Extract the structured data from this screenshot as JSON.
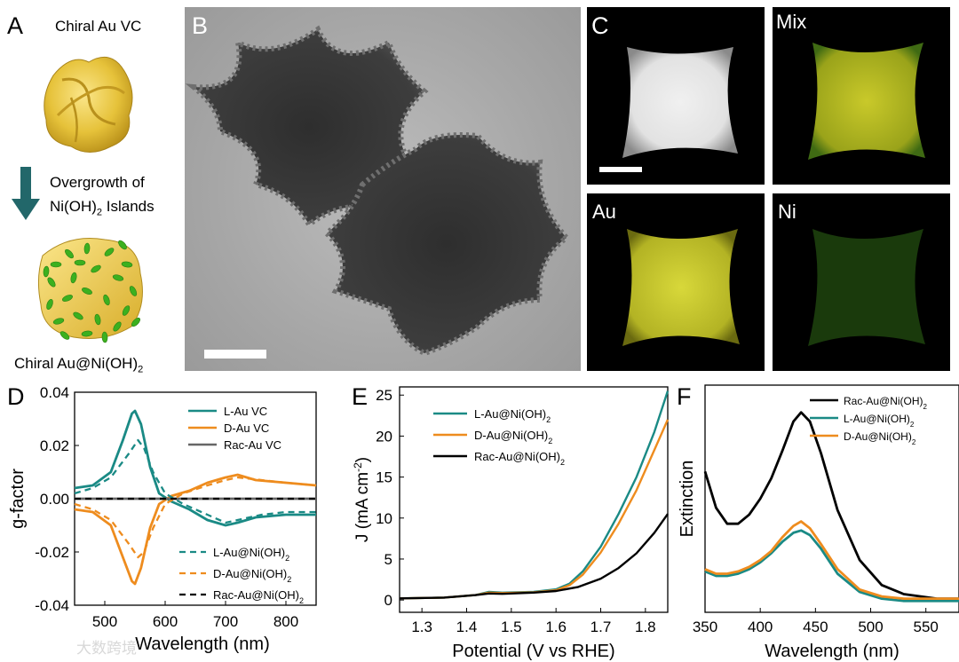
{
  "panel_labels": {
    "a": "A",
    "b": "B",
    "c": "C",
    "d": "D",
    "e": "E",
    "f": "F"
  },
  "panel_a": {
    "top_title": "Chiral Au VC",
    "arrow_text_1": "Overgrowth of",
    "arrow_text_2": "Ni(OH)",
    "arrow_text_2_sub": "2",
    "arrow_text_2_tail": " Islands",
    "bottom_title": "Chiral Au@Ni(OH)",
    "bottom_title_sub": "2",
    "colors": {
      "gold": "#e9c63a",
      "green": "#3cb01f",
      "arrow": "#22676a"
    }
  },
  "panel_c": {
    "map_labels": [
      "Mix",
      "Au",
      "Ni"
    ]
  },
  "colors": {
    "teal": "#1a8a85",
    "orange": "#ee8c1e",
    "black": "#000000",
    "gray": "#666666"
  },
  "watermark": "大数跨境",
  "chart_data": [
    {
      "id": "D",
      "type": "line",
      "xlabel": "Wavelength (nm)",
      "ylabel": "g-factor",
      "xlim": [
        450,
        850
      ],
      "ylim": [
        -0.04,
        0.04
      ],
      "xticks": [
        500,
        600,
        700,
        800
      ],
      "yticks": [
        0.04,
        0.02,
        0.0,
        -0.02,
        -0.04
      ],
      "ytick_labels": [
        "0.04",
        "0.02",
        "0.00",
        "-0.02",
        "-0.04"
      ],
      "legend_solid": [
        "L-Au VC",
        "D-Au VC",
        "Rac-Au VC"
      ],
      "legend_dashed": [
        "L-Au@Ni(OH)",
        "D-Au@Ni(OH)",
        "Rac-Au@Ni(OH)"
      ],
      "legend_sub": "2",
      "series": [
        {
          "name": "L-Au VC",
          "style": "solid",
          "color": "teal",
          "x": [
            450,
            480,
            510,
            530,
            545,
            550,
            560,
            575,
            590,
            610,
            640,
            670,
            700,
            720,
            750,
            800,
            850
          ],
          "y": [
            0.004,
            0.005,
            0.01,
            0.022,
            0.032,
            0.033,
            0.028,
            0.012,
            0.002,
            -0.001,
            -0.004,
            -0.008,
            -0.01,
            -0.009,
            -0.007,
            -0.006,
            -0.006
          ]
        },
        {
          "name": "D-Au VC",
          "style": "solid",
          "color": "orange",
          "x": [
            450,
            480,
            510,
            530,
            545,
            550,
            560,
            575,
            590,
            610,
            640,
            670,
            700,
            720,
            750,
            800,
            850
          ],
          "y": [
            -0.004,
            -0.005,
            -0.01,
            -0.022,
            -0.031,
            -0.032,
            -0.026,
            -0.011,
            -0.002,
            0.001,
            0.003,
            0.006,
            0.008,
            0.009,
            0.007,
            0.006,
            0.005
          ]
        },
        {
          "name": "Rac-Au VC",
          "style": "solid",
          "color": "gray",
          "x": [
            450,
            850
          ],
          "y": [
            0.0,
            0.0
          ]
        },
        {
          "name": "L-Au@Ni(OH)2",
          "style": "dashed",
          "color": "teal",
          "x": [
            450,
            480,
            510,
            540,
            555,
            565,
            580,
            600,
            630,
            670,
            700,
            720,
            760,
            800,
            850
          ],
          "y": [
            0.002,
            0.004,
            0.008,
            0.017,
            0.022,
            0.019,
            0.01,
            0.002,
            -0.002,
            -0.006,
            -0.009,
            -0.008,
            -0.006,
            -0.005,
            -0.005
          ]
        },
        {
          "name": "D-Au@Ni(OH)2",
          "style": "dashed",
          "color": "orange",
          "x": [
            450,
            480,
            510,
            540,
            555,
            565,
            580,
            600,
            630,
            670,
            700,
            720,
            760,
            800,
            850
          ],
          "y": [
            -0.002,
            -0.004,
            -0.008,
            -0.017,
            -0.022,
            -0.02,
            -0.011,
            -0.002,
            0.002,
            0.005,
            0.007,
            0.008,
            0.007,
            0.006,
            0.005
          ]
        },
        {
          "name": "Rac-Au@Ni(OH)2",
          "style": "dashed",
          "color": "black",
          "x": [
            450,
            850
          ],
          "y": [
            0.0,
            0.0
          ]
        }
      ]
    },
    {
      "id": "E",
      "type": "line",
      "xlabel": "Potential (V vs RHE)",
      "ylabel": "J (mA cm",
      "ylabel_sup": "-2",
      "ylabel_tail": ")",
      "xlim": [
        1.25,
        1.85
      ],
      "ylim": [
        -1.5,
        26
      ],
      "xticks": [
        1.3,
        1.4,
        1.5,
        1.6,
        1.7,
        1.8
      ],
      "xtick_labels": [
        "1.3",
        "1.4",
        "1.5",
        "1.6",
        "1.7",
        "1.8"
      ],
      "yticks": [
        0,
        5,
        10,
        15,
        20,
        25
      ],
      "legend": [
        "L-Au@Ni(OH)",
        "D-Au@Ni(OH)",
        "Rac-Au@Ni(OH)"
      ],
      "legend_sub": "2",
      "series": [
        {
          "name": "L-Au@Ni(OH)2",
          "color": "teal",
          "x": [
            1.25,
            1.35,
            1.42,
            1.45,
            1.48,
            1.55,
            1.6,
            1.63,
            1.66,
            1.7,
            1.74,
            1.78,
            1.82,
            1.85
          ],
          "y": [
            0.2,
            0.3,
            0.6,
            1.0,
            0.9,
            1.0,
            1.3,
            2.0,
            3.5,
            6.5,
            10.5,
            15.0,
            20.5,
            25.5
          ]
        },
        {
          "name": "D-Au@Ni(OH)2",
          "color": "orange",
          "x": [
            1.25,
            1.35,
            1.42,
            1.45,
            1.48,
            1.55,
            1.6,
            1.63,
            1.66,
            1.7,
            1.74,
            1.78,
            1.82,
            1.85
          ],
          "y": [
            0.2,
            0.3,
            0.6,
            0.9,
            0.85,
            0.95,
            1.2,
            1.8,
            3.1,
            5.8,
            9.3,
            13.4,
            18.3,
            22.0
          ]
        },
        {
          "name": "Rac-Au@Ni(OH)2",
          "color": "black",
          "x": [
            1.25,
            1.35,
            1.42,
            1.45,
            1.48,
            1.55,
            1.6,
            1.65,
            1.7,
            1.74,
            1.78,
            1.82,
            1.85
          ],
          "y": [
            0.2,
            0.3,
            0.6,
            0.8,
            0.75,
            0.9,
            1.1,
            1.6,
            2.6,
            3.9,
            5.7,
            8.2,
            10.5
          ]
        }
      ]
    },
    {
      "id": "F",
      "type": "line",
      "xlabel": "Wavelength (nm)",
      "ylabel": "Extinction",
      "xlim": [
        350,
        580
      ],
      "ylim": [
        0,
        1
      ],
      "xticks": [
        350,
        400,
        450,
        500,
        550
      ],
      "legend": [
        "Rac-Au@Ni(OH)",
        "L-Au@Ni(OH)",
        "D-Au@Ni(OH)"
      ],
      "legend_sub": "2",
      "series": [
        {
          "name": "Rac-Au@Ni(OH)2",
          "color": "black",
          "x": [
            350,
            360,
            370,
            380,
            390,
            400,
            410,
            420,
            430,
            437,
            445,
            455,
            470,
            490,
            510,
            530,
            560,
            580
          ],
          "y": [
            0.62,
            0.46,
            0.39,
            0.39,
            0.43,
            0.5,
            0.59,
            0.71,
            0.84,
            0.88,
            0.84,
            0.7,
            0.45,
            0.23,
            0.12,
            0.08,
            0.06,
            0.06
          ]
        },
        {
          "name": "L-Au@Ni(OH)2",
          "color": "teal",
          "x": [
            350,
            360,
            370,
            380,
            390,
            400,
            410,
            420,
            430,
            437,
            445,
            455,
            470,
            490,
            510,
            530,
            560,
            580
          ],
          "y": [
            0.18,
            0.16,
            0.16,
            0.17,
            0.19,
            0.22,
            0.26,
            0.31,
            0.35,
            0.36,
            0.34,
            0.28,
            0.17,
            0.09,
            0.06,
            0.05,
            0.05,
            0.05
          ]
        },
        {
          "name": "D-Au@Ni(OH)2",
          "color": "orange",
          "x": [
            350,
            360,
            370,
            380,
            390,
            400,
            410,
            420,
            430,
            437,
            445,
            455,
            470,
            490,
            510,
            530,
            560,
            580
          ],
          "y": [
            0.19,
            0.17,
            0.17,
            0.18,
            0.2,
            0.23,
            0.27,
            0.33,
            0.38,
            0.4,
            0.37,
            0.3,
            0.19,
            0.1,
            0.07,
            0.06,
            0.06,
            0.06
          ]
        }
      ]
    }
  ]
}
